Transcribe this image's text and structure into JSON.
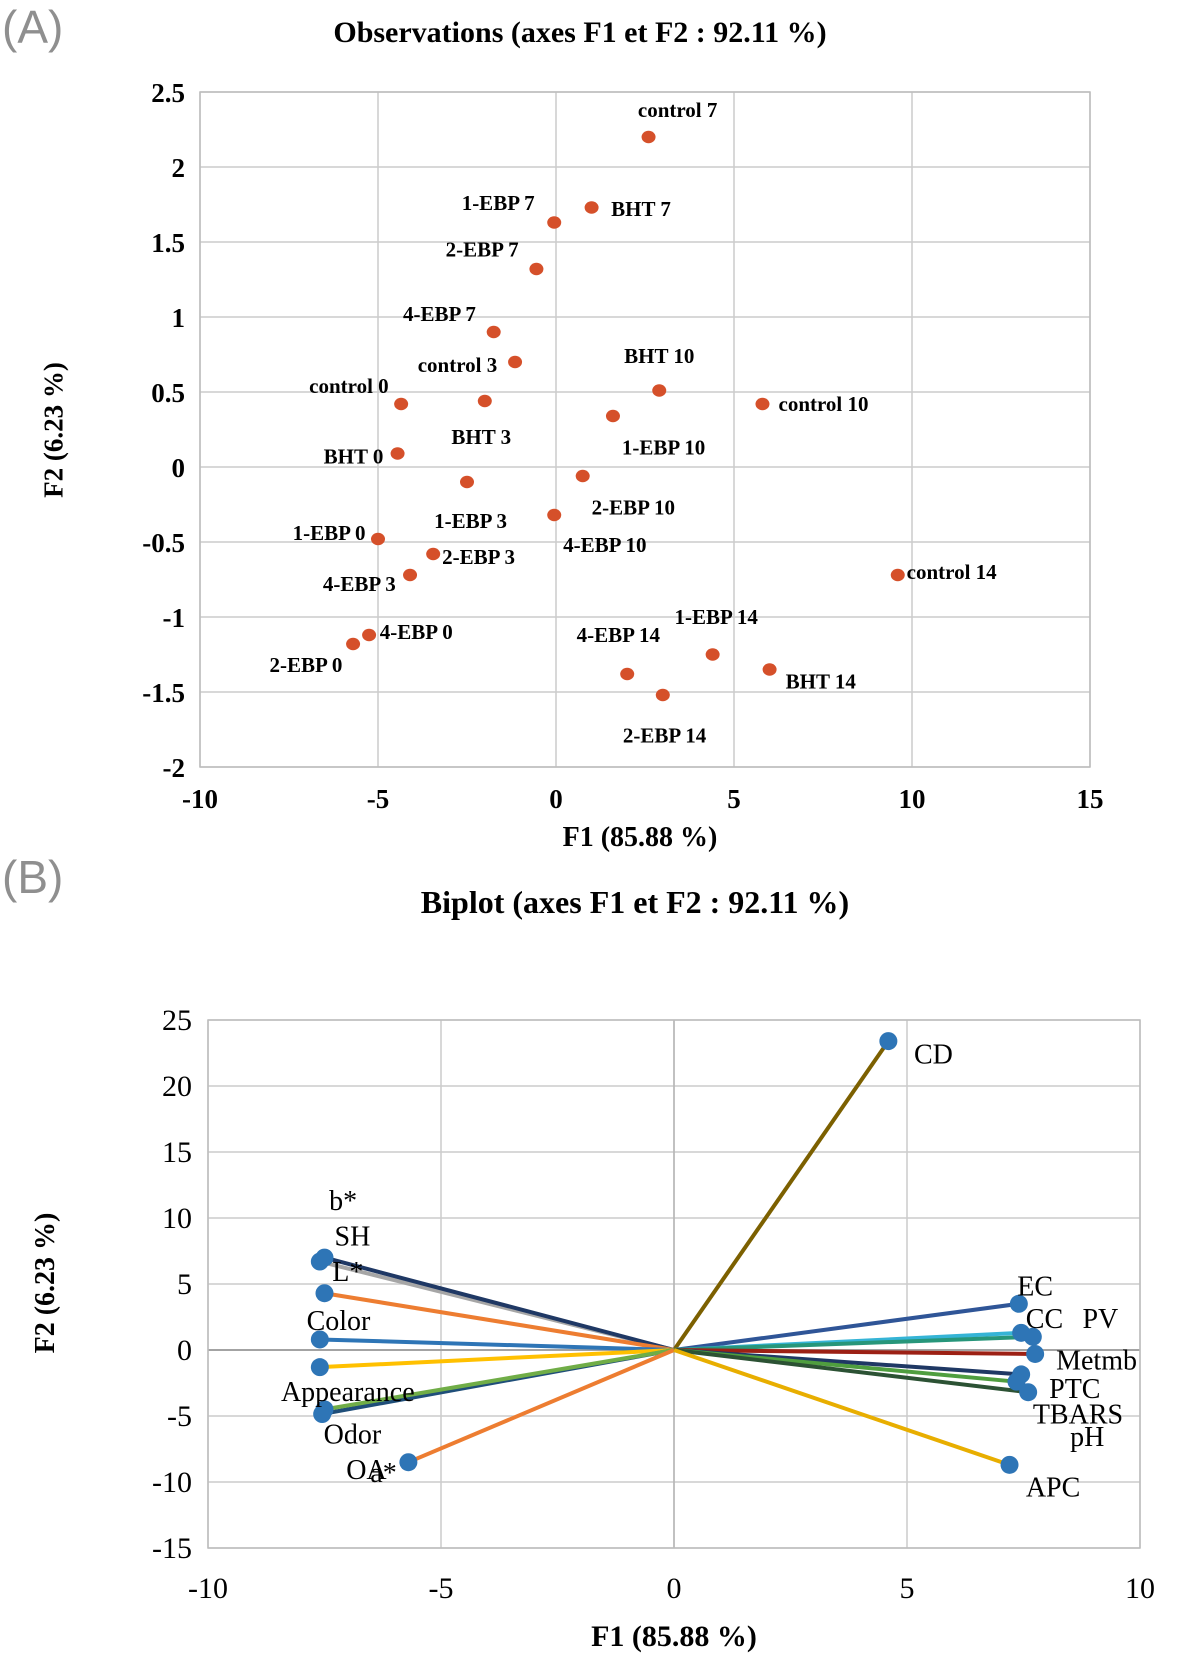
{
  "panelA": {
    "tag": "(A)",
    "title": "Observations (axes F1 et F2 : 92.11 %)",
    "xlabel": "F1 (85.88 %)",
    "ylabel": "F2 (6.23 %)"
  },
  "panelB": {
    "tag": "(B)",
    "title": "Biplot (axes F1 et F2 : 92.11 %)",
    "xlabel": "F1 (85.88 %)",
    "ylabel": "F2 (6.23 %)"
  },
  "chart_data": [
    {
      "type": "scatter",
      "panel": "A",
      "title": "Observations (axes F1 et F2 : 92.11 %)",
      "xlabel": "F1 (85.88 %)",
      "ylabel": "F2 (6.23 %)",
      "xlim": [
        -10,
        15
      ],
      "ylim": [
        -2,
        2.5
      ],
      "xticks": [
        -10,
        -5,
        0,
        5,
        10,
        15
      ],
      "yticks": [
        2.5,
        2,
        1.5,
        1,
        0.5,
        0,
        -0.5,
        -1,
        -1.5,
        -2
      ],
      "grid": true,
      "point_color": "#d5502a",
      "points": [
        {
          "label": "control 7",
          "x": 2.6,
          "y": 2.2,
          "lx": 2.3,
          "ly": 2.38,
          "anchor": "start"
        },
        {
          "label": "BHT 7",
          "x": 1.0,
          "y": 1.73,
          "lx": 1.55,
          "ly": 1.72,
          "anchor": "start"
        },
        {
          "label": "1-EBP 7",
          "x": -0.05,
          "y": 1.63,
          "lx": -0.6,
          "ly": 1.76,
          "anchor": "end"
        },
        {
          "label": "2-EBP 7",
          "x": -0.55,
          "y": 1.32,
          "lx": -1.05,
          "ly": 1.45,
          "anchor": "end"
        },
        {
          "label": "4-EBP 7",
          "x": -1.75,
          "y": 0.9,
          "lx": -2.25,
          "ly": 1.02,
          "anchor": "end"
        },
        {
          "label": "control 3",
          "x": -1.15,
          "y": 0.7,
          "lx": -1.65,
          "ly": 0.68,
          "anchor": "end"
        },
        {
          "label": "BHT 10",
          "x": 2.9,
          "y": 0.51,
          "lx": 2.9,
          "ly": 0.74,
          "anchor": "middle"
        },
        {
          "label": "control 0",
          "x": -4.35,
          "y": 0.42,
          "lx": -4.7,
          "ly": 0.54,
          "anchor": "end"
        },
        {
          "label": "BHT 3",
          "x": -2.0,
          "y": 0.44,
          "lx": -2.1,
          "ly": 0.2,
          "anchor": "middle"
        },
        {
          "label": "control 10",
          "x": 5.8,
          "y": 0.42,
          "lx": 6.25,
          "ly": 0.42,
          "anchor": "start"
        },
        {
          "label": "1-EBP 10",
          "x": 1.6,
          "y": 0.34,
          "lx": 1.85,
          "ly": 0.13,
          "anchor": "start"
        },
        {
          "label": "BHT 0",
          "x": -4.45,
          "y": 0.09,
          "lx": -4.85,
          "ly": 0.07,
          "anchor": "end"
        },
        {
          "label": "2-EBP 10",
          "x": 0.75,
          "y": -0.06,
          "lx": 1.0,
          "ly": -0.27,
          "anchor": "start"
        },
        {
          "label": "1-EBP 3",
          "x": -2.5,
          "y": -0.1,
          "lx": -2.4,
          "ly": -0.36,
          "anchor": "middle"
        },
        {
          "label": "4-EBP 10",
          "x": -0.05,
          "y": -0.32,
          "lx": 0.2,
          "ly": -0.52,
          "anchor": "start"
        },
        {
          "label": "1-EBP 0",
          "x": -5.0,
          "y": -0.48,
          "lx": -5.35,
          "ly": -0.44,
          "anchor": "end"
        },
        {
          "label": "2-EBP 3",
          "x": -3.45,
          "y": -0.58,
          "lx": -3.2,
          "ly": -0.6,
          "anchor": "start"
        },
        {
          "label": "4-EBP 3",
          "x": -4.1,
          "y": -0.72,
          "lx": -4.5,
          "ly": -0.78,
          "anchor": "end"
        },
        {
          "label": "4-EBP 0",
          "x": -5.25,
          "y": -1.12,
          "lx": -4.95,
          "ly": -1.1,
          "anchor": "start"
        },
        {
          "label": "2-EBP 0",
          "x": -5.7,
          "y": -1.18,
          "lx": -6.0,
          "ly": -1.32,
          "anchor": "end"
        },
        {
          "label": "4-EBP 14",
          "x": 2.0,
          "y": -1.38,
          "lx": 1.75,
          "ly": -1.12,
          "anchor": "middle"
        },
        {
          "label": "1-EBP 14",
          "x": 4.4,
          "y": -1.25,
          "lx": 4.5,
          "ly": -1.0,
          "anchor": "middle"
        },
        {
          "label": "2-EBP 14",
          "x": 3.0,
          "y": -1.52,
          "lx": 3.05,
          "ly": -1.79,
          "anchor": "middle"
        },
        {
          "label": "BHT 14",
          "x": 6.0,
          "y": -1.35,
          "lx": 6.45,
          "ly": -1.43,
          "anchor": "start"
        },
        {
          "label": "control 14",
          "x": 9.6,
          "y": -0.72,
          "lx": 9.85,
          "ly": -0.7,
          "anchor": "start"
        }
      ]
    },
    {
      "type": "biplot",
      "panel": "B",
      "title": "Biplot (axes F1 et F2 : 92.11 %)",
      "xlabel": "F1 (85.88 %)",
      "ylabel": "F2 (6.23 %)",
      "xlim": [
        -10,
        10
      ],
      "ylim": [
        -15,
        25
      ],
      "xticks": [
        -10,
        -5,
        0,
        5,
        10
      ],
      "yticks": [
        25,
        20,
        15,
        10,
        5,
        0,
        -5,
        -10,
        -15
      ],
      "grid": true,
      "point_color": "#2e75b6",
      "vectors": [
        {
          "label": "CD",
          "x": 4.6,
          "y": 23.4,
          "color": "#7c6000",
          "lx": 5.15,
          "ly": 22.4,
          "anchor": "start"
        },
        {
          "label": "SH",
          "x": -7.6,
          "y": 6.7,
          "color": "#a6a6a6",
          "lx": -6.9,
          "ly": 8.6,
          "anchor": "middle"
        },
        {
          "label": "b*",
          "x": -7.5,
          "y": 7.0,
          "color": "#1f3864",
          "lx": -7.1,
          "ly": 11.3,
          "anchor": "middle"
        },
        {
          "label": "L*",
          "x": -7.5,
          "y": 4.3,
          "color": "#ed7d31",
          "lx": -7.0,
          "ly": 5.9,
          "anchor": "middle"
        },
        {
          "label": "Color",
          "x": -7.6,
          "y": 0.8,
          "color": "#2e75b6",
          "lx": -7.2,
          "ly": 2.2,
          "anchor": "middle"
        },
        {
          "label": "Appearance",
          "x": -7.6,
          "y": -1.3,
          "color": "#ffc000",
          "lx": -7.0,
          "ly": -3.2,
          "anchor": "middle"
        },
        {
          "label": "OA",
          "x": -7.55,
          "y": -4.85,
          "color": "#1f4e79",
          "lx": -6.6,
          "ly": -9.1,
          "anchor": "middle"
        },
        {
          "label": "Odor",
          "x": -7.5,
          "y": -4.5,
          "color": "#70ad47",
          "lx": -6.9,
          "ly": -6.4,
          "anchor": "middle"
        },
        {
          "label": "a*",
          "x": -5.7,
          "y": -8.5,
          "color": "#ed7d31",
          "lx": -5.95,
          "ly": -9.3,
          "anchor": "end"
        },
        {
          "label": "EC",
          "x": 7.4,
          "y": 3.5,
          "color": "#2f5597",
          "lx": 7.75,
          "ly": 4.8,
          "anchor": "middle"
        },
        {
          "label": "CC",
          "x": 7.45,
          "y": 1.3,
          "color": "#35b4d6",
          "lx": 7.95,
          "ly": 2.35,
          "anchor": "middle"
        },
        {
          "label": "PV",
          "x": 7.7,
          "y": 1.0,
          "color": "#27967a",
          "lx": 9.15,
          "ly": 2.35,
          "anchor": "middle"
        },
        {
          "label": "Metmb",
          "x": 7.75,
          "y": -0.3,
          "color": "#9c2014",
          "lx": 8.2,
          "ly": -0.8,
          "anchor": "start"
        },
        {
          "label": "PTC",
          "x": 7.45,
          "y": -1.85,
          "color": "#1f3864",
          "lx": 8.05,
          "ly": -2.95,
          "anchor": "start"
        },
        {
          "label": "TBARS",
          "x": 7.35,
          "y": -2.4,
          "color": "#4f9e3f",
          "lx": 7.7,
          "ly": -4.9,
          "anchor": "start"
        },
        {
          "label": "pH",
          "x": 7.6,
          "y": -3.2,
          "color": "#2c5234",
          "lx": 8.5,
          "ly": -6.6,
          "anchor": "start"
        },
        {
          "label": "APC",
          "x": 7.2,
          "y": -8.7,
          "color": "#e8ae00",
          "lx": 7.55,
          "ly": -10.4,
          "anchor": "start"
        }
      ]
    }
  ]
}
